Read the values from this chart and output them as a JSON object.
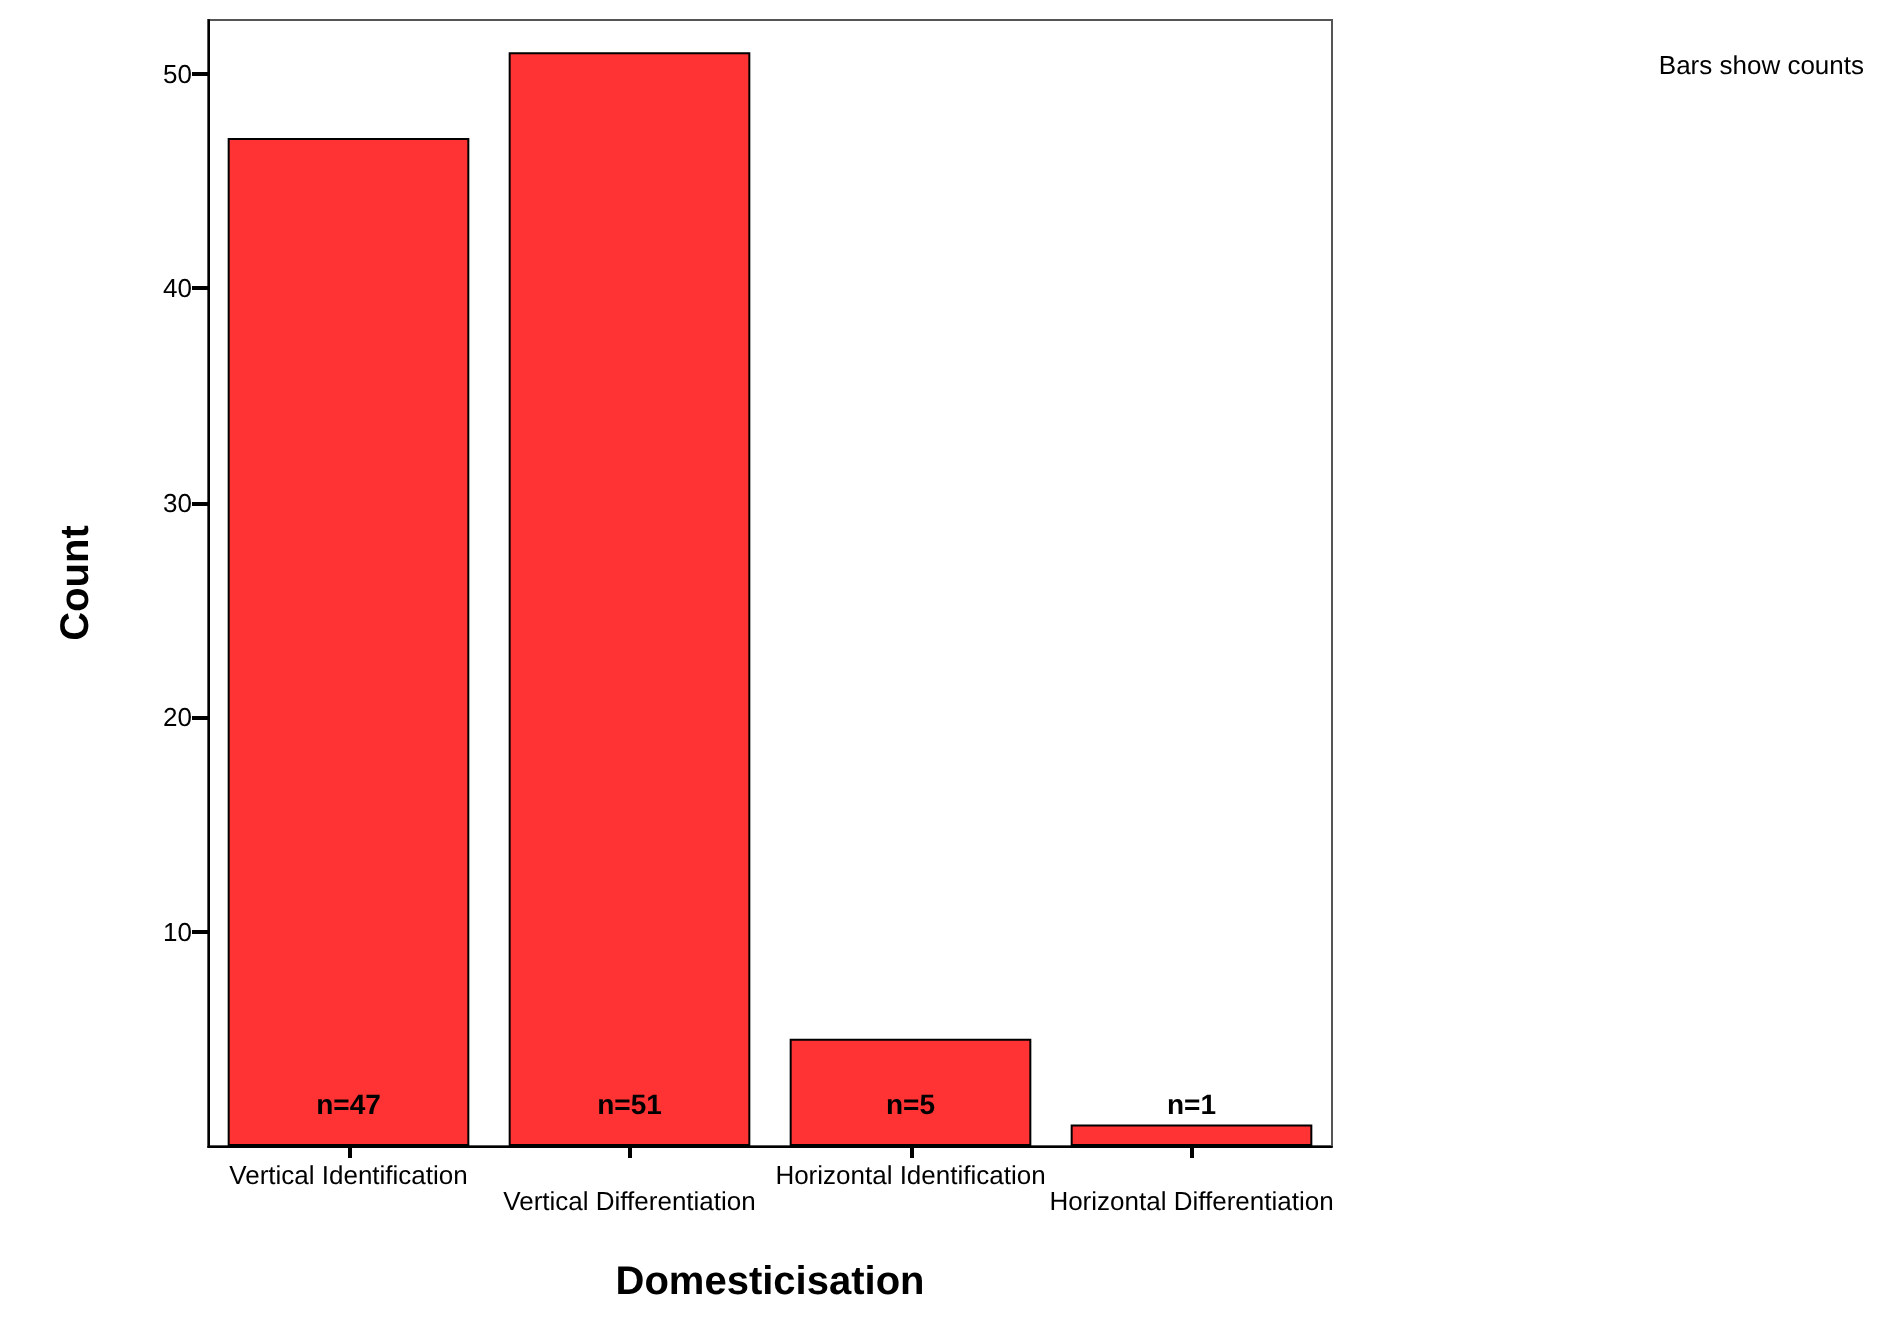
{
  "chart_data": {
    "type": "bar",
    "xlabel": "Domesticisation",
    "ylabel": "Count",
    "categories": [
      "Vertical Identification",
      "Vertical Differentiation",
      "Horizontal Identification",
      "Horizontal Differentiation"
    ],
    "values": [
      47,
      51,
      5,
      1
    ],
    "value_labels": [
      "n=47",
      "n=51",
      "n=5",
      "n=1"
    ],
    "color": "#ff3333",
    "ylim": [
      0,
      52.5
    ],
    "yticks": [
      10,
      20,
      30,
      40,
      50
    ],
    "grid": false,
    "annotations": [
      "Bars show counts"
    ]
  }
}
